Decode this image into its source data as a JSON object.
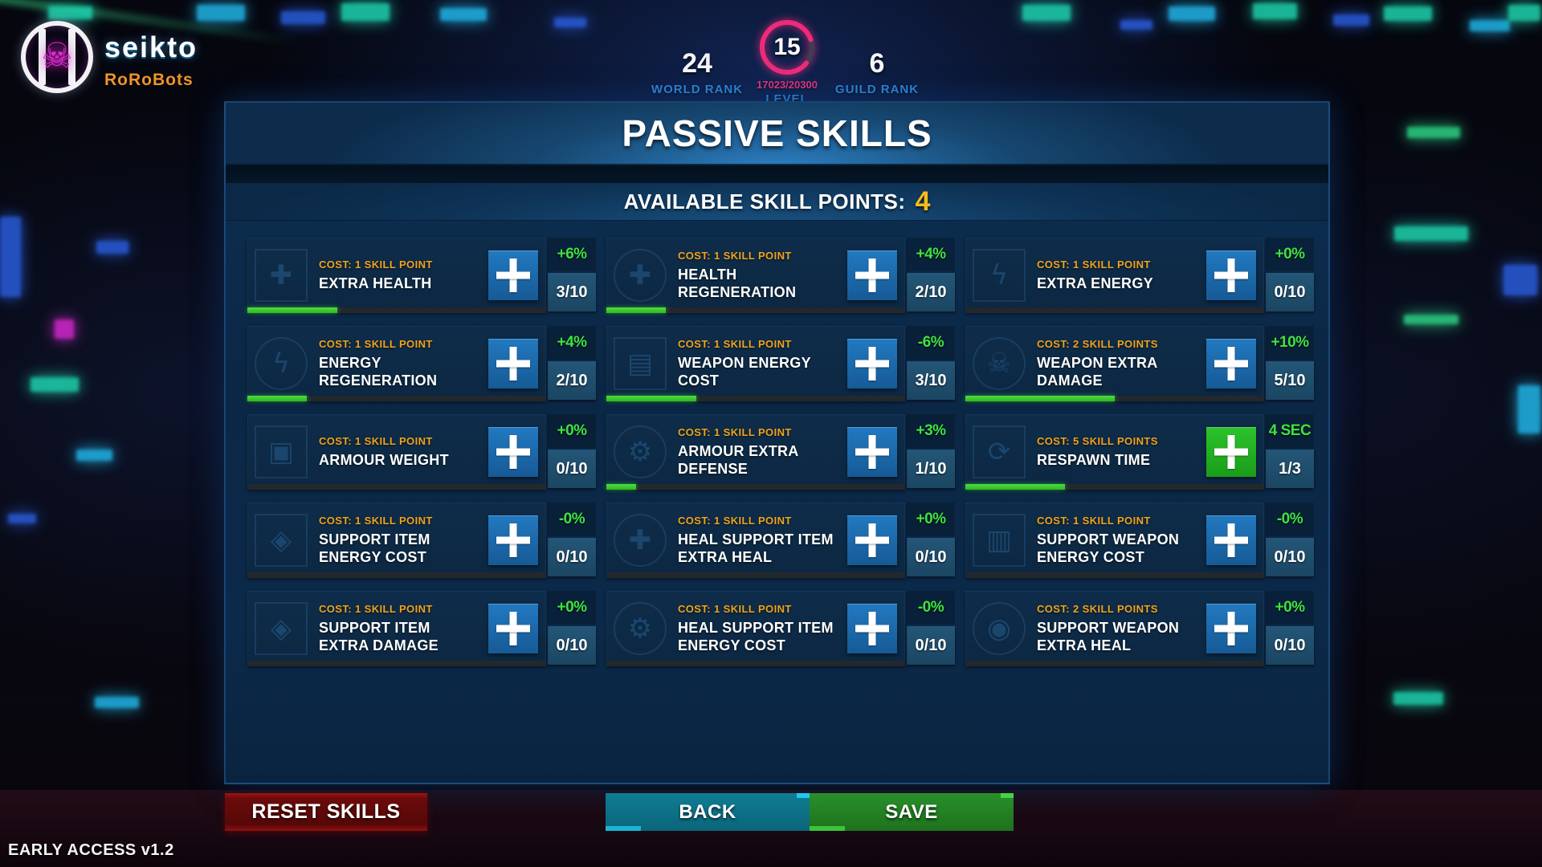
{
  "header": {
    "logo": {
      "player_name": "seikto",
      "guild_name": "RoRoBots",
      "skull_color": "#e42ad4"
    },
    "stats": {
      "world_rank": {
        "value": "24",
        "label": "WORLD RANK"
      },
      "level": {
        "value": "15",
        "xp": "17023/20300",
        "label": "LEVEL",
        "progress_pct": 84,
        "ring_color": "#ee2a7b"
      },
      "guild_rank": {
        "value": "6",
        "label": "GUILD RANK"
      }
    }
  },
  "panel": {
    "title": "PASSIVE SKILLS",
    "skill_points_label": "AVAILABLE SKILL POINTS:",
    "skill_points_value": "4"
  },
  "grid": {
    "cards": [
      {
        "icon": "extra-health",
        "icon_glyph": "✚",
        "icon_shape": "square",
        "cost": "COST: 1 SKILL POINT",
        "name": "EXTRA HEALTH",
        "bonus": "+6%",
        "value": "3/10",
        "level": 3,
        "max": 10,
        "button": "blue"
      },
      {
        "icon": "health-regeneration",
        "icon_glyph": "✚",
        "icon_shape": "circle",
        "cost": "COST: 1 SKILL POINT",
        "name": "HEALTH REGENERATION",
        "bonus": "+4%",
        "value": "2/10",
        "level": 2,
        "max": 10,
        "button": "blue"
      },
      {
        "icon": "extra-energy",
        "icon_glyph": "ϟ",
        "icon_shape": "square",
        "cost": "COST: 1 SKILL POINT",
        "name": "EXTRA ENERGY",
        "bonus": "+0%",
        "value": "0/10",
        "level": 0,
        "max": 10,
        "button": "blue"
      },
      {
        "icon": "energy-regeneration",
        "icon_glyph": "ϟ",
        "icon_shape": "circle",
        "cost": "COST: 1 SKILL POINT",
        "name": "ENERGY REGENERATION",
        "bonus": "+4%",
        "value": "2/10",
        "level": 2,
        "max": 10,
        "button": "blue"
      },
      {
        "icon": "weapon-energy-cost",
        "icon_glyph": "▤",
        "icon_shape": "square",
        "cost": "COST: 1 SKILL POINT",
        "name": "WEAPON ENERGY COST",
        "bonus": "-6%",
        "value": "3/10",
        "level": 3,
        "max": 10,
        "button": "blue"
      },
      {
        "icon": "weapon-extra-damage",
        "icon_glyph": "☠",
        "icon_shape": "circle",
        "cost": "COST: 2 SKILL POINTS",
        "name": "WEAPON EXTRA DAMAGE",
        "bonus": "+10%",
        "value": "5/10",
        "level": 5,
        "max": 10,
        "button": "blue"
      },
      {
        "icon": "armour-weight",
        "icon_glyph": "▣",
        "icon_shape": "square",
        "cost": "COST: 1 SKILL POINT",
        "name": "ARMOUR WEIGHT",
        "bonus": "+0%",
        "value": "0/10",
        "level": 0,
        "max": 10,
        "button": "blue"
      },
      {
        "icon": "armour-extra-defense",
        "icon_glyph": "⚙",
        "icon_shape": "circle",
        "cost": "COST: 1 SKILL POINT",
        "name": "ARMOUR EXTRA DEFENSE",
        "bonus": "+3%",
        "value": "1/10",
        "level": 1,
        "max": 10,
        "button": "blue"
      },
      {
        "icon": "respawn-time",
        "icon_glyph": "⟳",
        "icon_shape": "square",
        "cost": "COST: 5 SKILL POINTS",
        "name": "RESPAWN TIME",
        "bonus": "4 SEC",
        "value": "1/3",
        "level": 1,
        "max": 3,
        "button": "green"
      },
      {
        "icon": "support-item-energy-cost",
        "icon_glyph": "◈",
        "icon_shape": "square",
        "cost": "COST: 1 SKILL POINT",
        "name": "SUPPORT ITEM ENERGY COST",
        "bonus": "-0%",
        "value": "0/10",
        "level": 0,
        "max": 10,
        "button": "blue"
      },
      {
        "icon": "heal-support-item-extra-heal",
        "icon_glyph": "✚",
        "icon_shape": "circle",
        "cost": "COST: 1 SKILL POINT",
        "name": "HEAL SUPPORT ITEM EXTRA HEAL",
        "bonus": "+0%",
        "value": "0/10",
        "level": 0,
        "max": 10,
        "button": "blue"
      },
      {
        "icon": "support-weapon-energy-cost",
        "icon_glyph": "▥",
        "icon_shape": "square",
        "cost": "COST: 1 SKILL POINT",
        "name": "SUPPORT WEAPON ENERGY COST",
        "bonus": "-0%",
        "value": "0/10",
        "level": 0,
        "max": 10,
        "button": "blue"
      },
      {
        "icon": "support-item-extra-damage",
        "icon_glyph": "◈",
        "icon_shape": "square",
        "cost": "COST: 1 SKILL POINT",
        "name": "SUPPORT ITEM EXTRA DAMAGE",
        "bonus": "+0%",
        "value": "0/10",
        "level": 0,
        "max": 10,
        "button": "blue"
      },
      {
        "icon": "heal-support-item-energy-cost",
        "icon_glyph": "⚙",
        "icon_shape": "circle",
        "cost": "COST: 1 SKILL POINT",
        "name": "HEAL SUPPORT ITEM ENERGY COST",
        "bonus": "-0%",
        "value": "0/10",
        "level": 0,
        "max": 10,
        "button": "blue"
      },
      {
        "icon": "support-weapon-extra-heal",
        "icon_glyph": "◉",
        "icon_shape": "circle",
        "cost": "COST: 2 SKILL POINTS",
        "name": "SUPPORT WEAPON EXTRA HEAL",
        "bonus": "+0%",
        "value": "0/10",
        "level": 0,
        "max": 10,
        "button": "blue"
      }
    ]
  },
  "footer": {
    "reset_label": "RESET SKILLS",
    "back_label": "BACK",
    "save_label": "SAVE",
    "version": "EARLY ACCESS v1.2"
  },
  "colors": {
    "accent_green": "#3fe33f",
    "cost_orange": "#f0a41e",
    "skill_points_yellow": "#f5bb1c",
    "button_blue": "#1b6aae",
    "button_green": "#22b322",
    "reset_red": "#6c0b0b",
    "back_teal": "#0b6579",
    "save_green": "#1d721d",
    "rank_label_blue": "#2f86d6",
    "level_pink": "#ee2a7b"
  }
}
